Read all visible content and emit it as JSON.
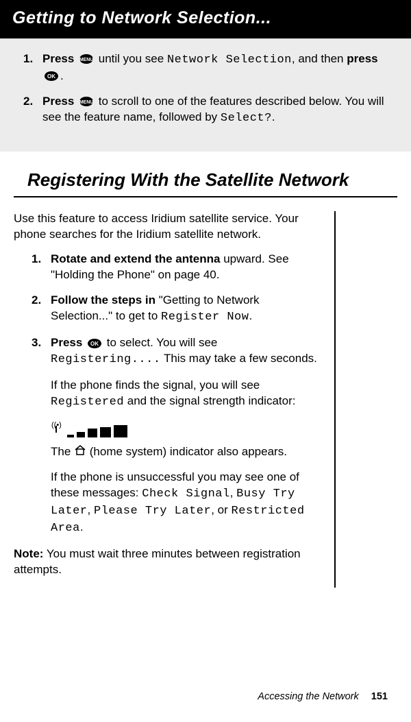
{
  "banner_title": "Getting to Network Selection...",
  "gray_steps": [
    {
      "num": "1.",
      "pre": "Press ",
      "icon": "menu",
      "mid": " until you see ",
      "mono": "Network Selection",
      "post1": ", and then ",
      "bold2": "press ",
      "icon2": "ok",
      "post2": "."
    },
    {
      "num": "2.",
      "pre": "Press ",
      "icon": "menu",
      "mid": " to scroll to one of the features described below. You will see the feature name, followed by ",
      "mono": "Select?",
      "post2": "."
    }
  ],
  "h2": "Registering With the Satellite Network",
  "intro": "Use this feature to access Iridium satellite service. Your phone searches for the Iridium satellite network.",
  "innersteps": {
    "s1": {
      "num": "1.",
      "bold": "Rotate and extend the antenna",
      "rest": " upward. See \"Holding the Phone\" on page 40."
    },
    "s2": {
      "num": "2.",
      "bold": "Follow the steps in",
      "rest": " \"Getting to Network Selection...\" to get to ",
      "mono": "Register Now",
      "post": "."
    },
    "s3": {
      "num": "3.",
      "bold": "Press ",
      "icon": "ok",
      "rest": " to select. You will see ",
      "mono": "Registering....",
      "post": " This may take a few seconds."
    }
  },
  "after3a_pre": "If the phone finds the signal, you will see ",
  "after3a_mono": "Registered",
  "after3a_post": " and the signal strength indicator:",
  "home_line_pre": "The ",
  "home_line_post": " (home system) indicator also appears.",
  "unsuccess_pre": "If the phone is unsuccessful you may see one of these messages:  ",
  "unsuccess_m1": "Check Signal",
  "unsuccess_m2": "Busy Try Later",
  "unsuccess_m3": "Please Try Later",
  "unsuccess_or": ", or ",
  "unsuccess_m4": "Restricted Area",
  "unsuccess_end": ".",
  "note_bold": "Note:",
  "note_text": "  You must wait three minutes between registration attempts.",
  "footer_label": "Accessing the Network",
  "footer_page": "151",
  "signal_bars": [
    {
      "w": 10,
      "h": 4
    },
    {
      "w": 12,
      "h": 8
    },
    {
      "w": 14,
      "h": 13
    },
    {
      "w": 16,
      "h": 15
    },
    {
      "w": 20,
      "h": 18
    }
  ]
}
